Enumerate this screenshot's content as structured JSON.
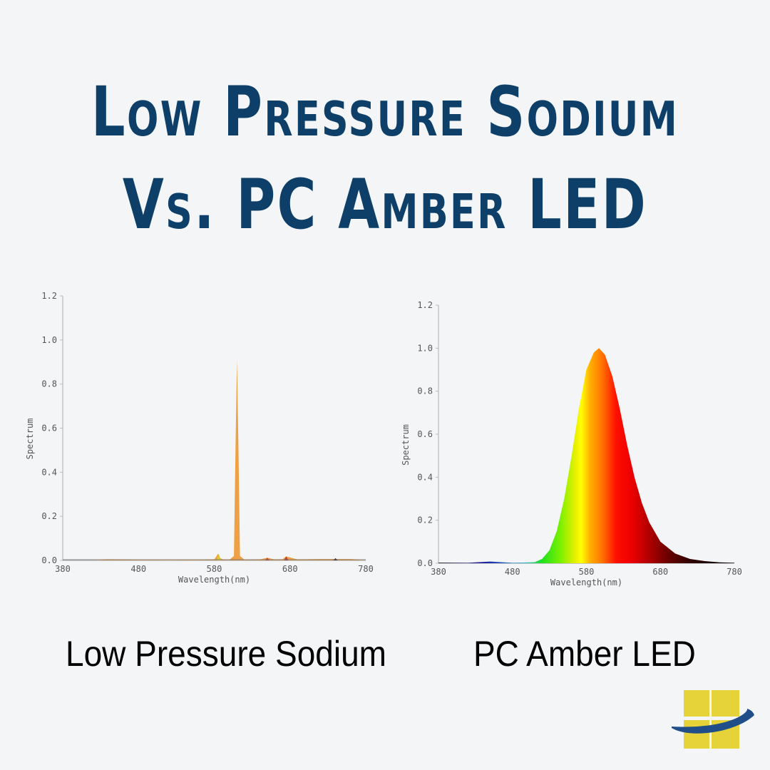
{
  "title": {
    "line1": "Low Pressure Sodium",
    "line2": "Vs. PC Amber  LED"
  },
  "captions": {
    "left": "Low Pressure Sodium",
    "right": "PC Amber LED"
  },
  "colors": {
    "background": "#f3f5f7",
    "title": "#0d3f68",
    "sodium_peak": "#f0a044",
    "logo_yellow": "#e6d33a",
    "logo_blue": "#1f4e89"
  },
  "chart_data": [
    {
      "type": "area",
      "title": "Low Pressure Sodium",
      "xlabel": "Wavelength(nm)",
      "ylabel": "Spectrum",
      "xlim": [
        380,
        780
      ],
      "ylim": [
        0,
        1.2
      ],
      "x_ticks": [
        "380",
        "480",
        "580",
        "680",
        "780"
      ],
      "y_ticks": [
        "0.0",
        "0.2",
        "0.4",
        "0.6",
        "0.8",
        "1.0",
        "1.2"
      ],
      "grid": false,
      "legend": null,
      "series": [
        {
          "name": "Low Pressure Sodium spectrum",
          "x": [
            380,
            420,
            440,
            480,
            520,
            560,
            580,
            585,
            588,
            592,
            600,
            606,
            608,
            610,
            612,
            614,
            620,
            640,
            650,
            660,
            670,
            675,
            690,
            720,
            760,
            780
          ],
          "y": [
            0.0,
            0.0,
            0.005,
            0.003,
            0.002,
            0.003,
            0.004,
            0.03,
            0.01,
            0.003,
            0.003,
            0.02,
            0.5,
            0.91,
            0.5,
            0.02,
            0.003,
            0.004,
            0.012,
            0.004,
            0.005,
            0.018,
            0.004,
            0.006,
            0.006,
            0.0
          ]
        }
      ],
      "annotations": [
        "Dominant narrow emission peak ~0.91 near 610 nm (as drawn), small yellow spike ~586 nm"
      ]
    },
    {
      "type": "area",
      "title": "PC Amber LED",
      "xlabel": "Wavelength(nm)",
      "ylabel": "Spectrum",
      "xlim": [
        380,
        780
      ],
      "ylim": [
        0,
        1.2
      ],
      "x_ticks": [
        "380",
        "480",
        "580",
        "680",
        "780"
      ],
      "y_ticks": [
        "0.0",
        "0.2",
        "0.4",
        "0.6",
        "0.8",
        "1.0",
        "1.2"
      ],
      "grid": false,
      "legend": null,
      "series": [
        {
          "name": "PC Amber LED spectrum",
          "x": [
            380,
            420,
            450,
            480,
            510,
            520,
            530,
            540,
            550,
            560,
            570,
            580,
            590,
            597,
            605,
            615,
            625,
            635,
            645,
            655,
            665,
            680,
            700,
            720,
            740,
            760,
            780
          ],
          "y": [
            0.003,
            0.002,
            0.008,
            0.002,
            0.005,
            0.02,
            0.06,
            0.15,
            0.3,
            0.5,
            0.72,
            0.9,
            0.98,
            1.0,
            0.97,
            0.87,
            0.72,
            0.55,
            0.4,
            0.28,
            0.19,
            0.1,
            0.045,
            0.02,
            0.01,
            0.004,
            0.002
          ]
        }
      ],
      "annotations": [
        "Broad peak 1.0 near 597 nm, fill colored by wavelength (green→yellow→orange→red→dark red)"
      ]
    }
  ]
}
